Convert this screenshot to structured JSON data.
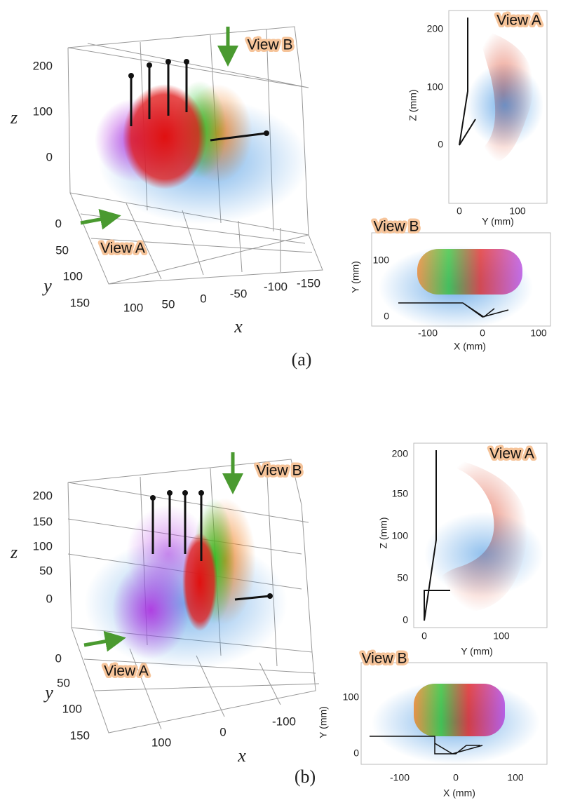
{
  "panels": [
    {
      "label": "(a)",
      "view3d": {
        "x_label": "x",
        "y_label": "y",
        "z_label": "z",
        "view_a": "View A",
        "view_b": "View B",
        "zticks": [
          200,
          100,
          0
        ],
        "yticks": [
          0,
          50,
          100,
          150
        ],
        "xticks": [
          100,
          50,
          0,
          -50,
          -100,
          -150
        ]
      },
      "view_a": {
        "title": "View A",
        "xlabel": "Y (mm)",
        "ylabel": "Z (mm)",
        "xticks": [
          0,
          100
        ],
        "yticks": [
          0,
          100,
          200
        ]
      },
      "view_b": {
        "title": "View B",
        "xlabel": "X (mm)",
        "ylabel": "Y (mm)",
        "xticks": [
          -100,
          0,
          100
        ],
        "yticks": [
          0,
          100
        ]
      }
    },
    {
      "label": "(b)",
      "view3d": {
        "x_label": "x",
        "y_label": "y",
        "z_label": "z",
        "view_a": "View A",
        "view_b": "View B",
        "zticks": [
          200,
          150,
          100,
          50,
          0
        ],
        "yticks": [
          0,
          50,
          100,
          150
        ],
        "xticks": [
          100,
          0,
          -100
        ]
      },
      "view_a": {
        "title": "View A",
        "xlabel": "Y (mm)",
        "ylabel": "Z (mm)",
        "xticks": [
          0,
          100
        ],
        "yticks": [
          0,
          50,
          100,
          150,
          200
        ]
      },
      "view_b": {
        "title": "View B",
        "xlabel": "X (mm)",
        "ylabel": "Y (mm)",
        "xticks": [
          -100,
          0,
          100
        ],
        "yticks": [
          0,
          100
        ]
      }
    }
  ]
}
